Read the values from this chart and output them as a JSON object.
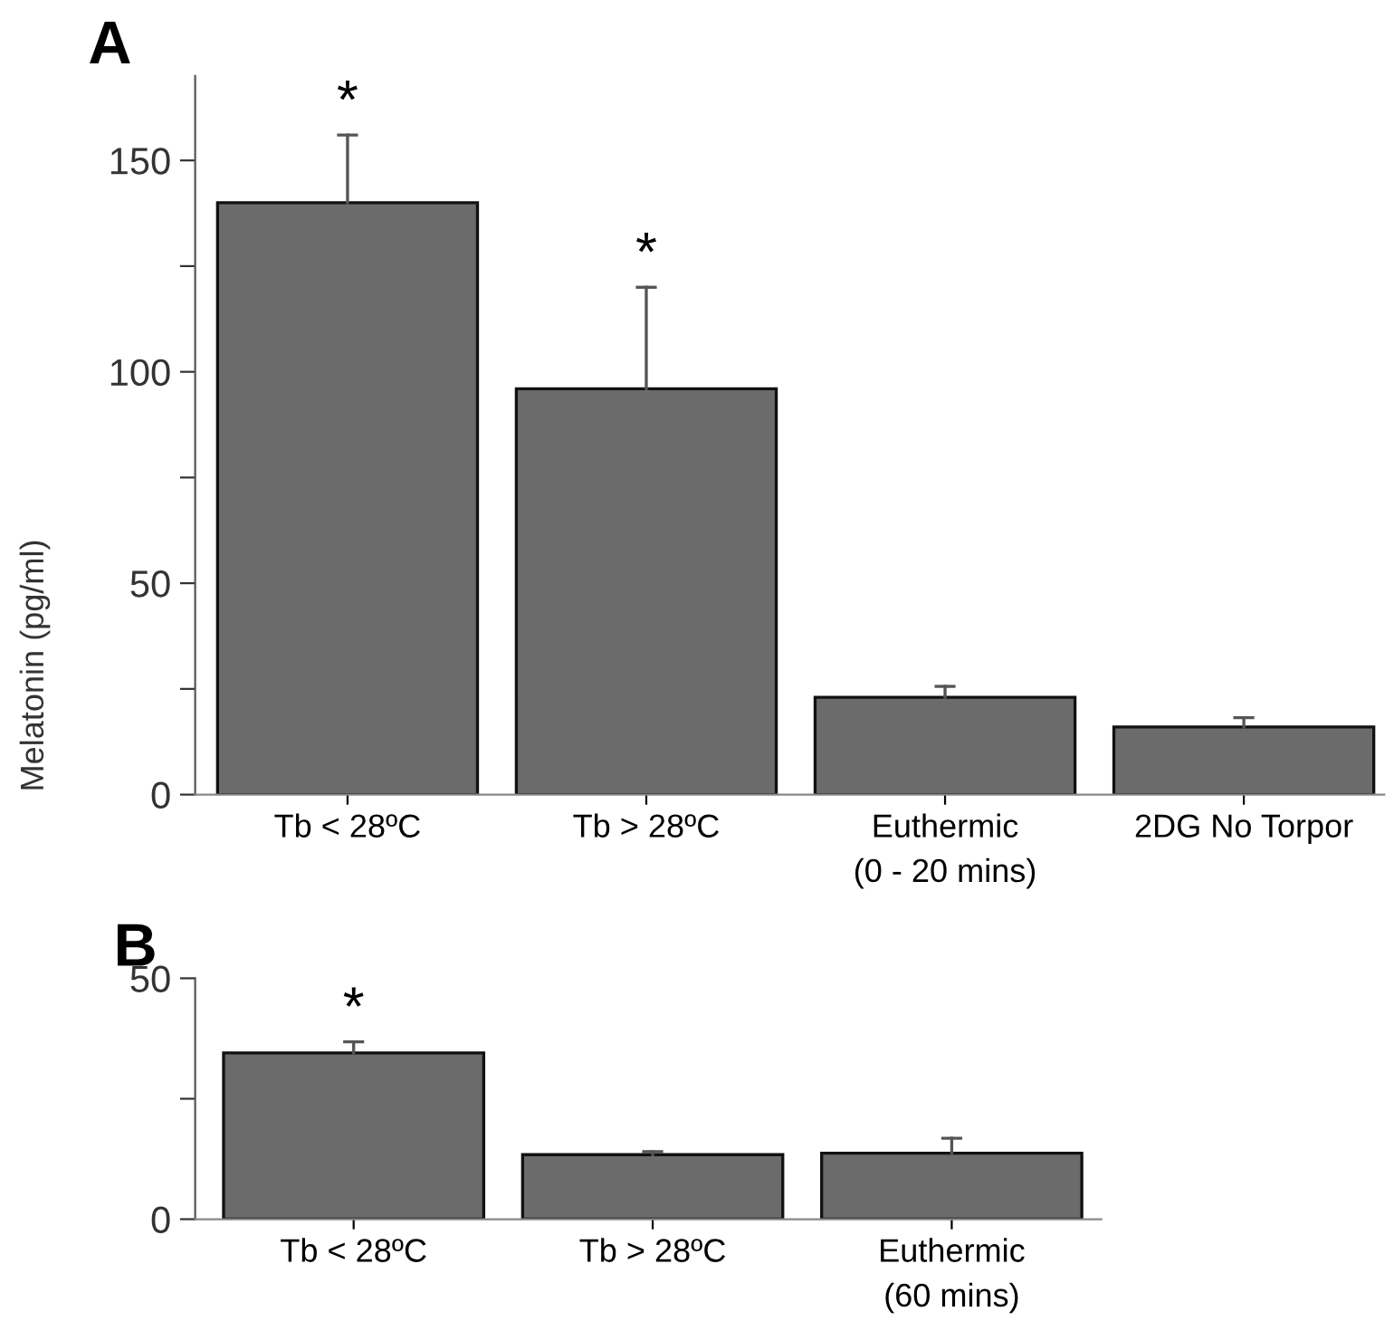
{
  "chart_data": [
    {
      "type": "bar",
      "title": "A",
      "ylabel": "Melatonin (pg/ml)",
      "categories": [
        "Tb < 28ºC",
        "Tb > 28ºC",
        "Euthermic\n(0 - 20 mins)",
        "2DG No Torpor"
      ],
      "values": [
        140,
        96,
        23,
        16
      ],
      "color": "#6b6b6b",
      "errors": [
        [
          140,
          156
        ],
        [
          96,
          120
        ],
        [
          23,
          25.6
        ],
        [
          16,
          18.2
        ]
      ],
      "ylim": [
        0,
        170
      ],
      "yticks": [
        0,
        {
          "value": 25,
          "label": null
        },
        50,
        {
          "value": 75,
          "label": null
        },
        100,
        {
          "value": 125,
          "label": null
        },
        150
      ],
      "annotations": [
        {
          "text": "*",
          "x": "Tb < 28ºC",
          "y": 156
        },
        {
          "text": "*",
          "x": "Tb > 28ºC",
          "y": 120
        }
      ]
    },
    {
      "type": "bar",
      "title": "B",
      "categories": [
        "Tb < 28ºC",
        "Tb > 28ºC",
        "Euthermic\n(60 mins)"
      ],
      "values": [
        34.5,
        13.4,
        13.7
      ],
      "color": "#6b6b6b",
      "errors": [
        [
          34.5,
          36.8
        ],
        [
          13.4,
          14
        ],
        [
          13.7,
          16.8
        ]
      ],
      "ylim": [
        0,
        50
      ],
      "yticks": [
        0,
        {
          "value": 25,
          "label": null
        },
        50
      ],
      "annotations": [
        {
          "text": "*",
          "x": "Tb < 28ºC",
          "y": 36.8
        }
      ]
    }
  ]
}
